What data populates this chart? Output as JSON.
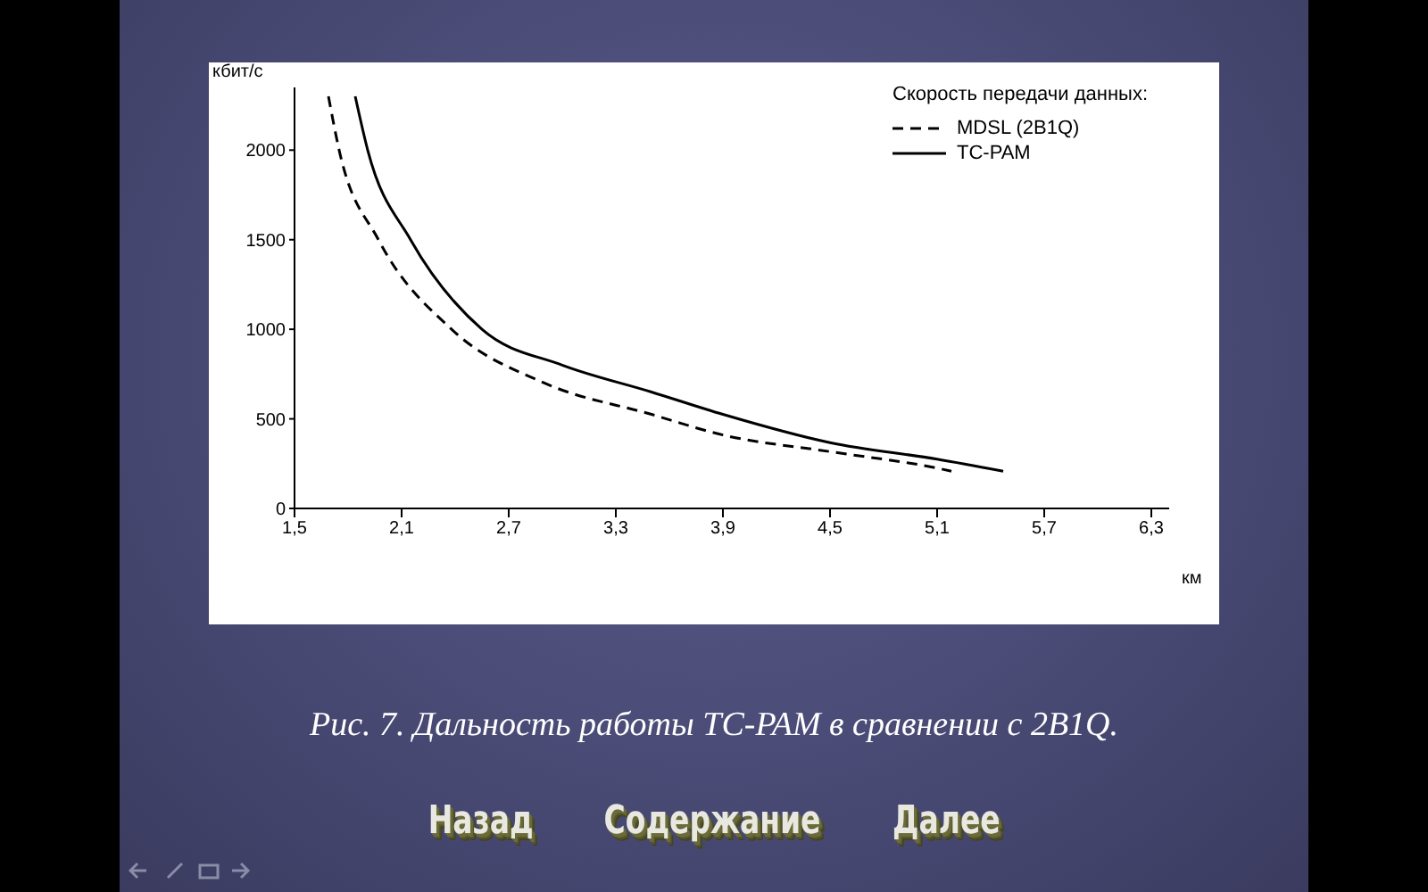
{
  "chart_data": {
    "type": "line",
    "xlabel": "км",
    "ylabel": "кбит/с",
    "legend_title": "Скорость передачи данных:",
    "xlim": [
      1.5,
      6.4
    ],
    "xticks": [
      {
        "value": 1.5,
        "label": "1,5"
      },
      {
        "value": 2.1,
        "label": "2,1"
      },
      {
        "value": 2.7,
        "label": "2,7"
      },
      {
        "value": 3.3,
        "label": "3,3"
      },
      {
        "value": 3.9,
        "label": "3,9"
      },
      {
        "value": 4.5,
        "label": "4,5"
      },
      {
        "value": 5.1,
        "label": "5,1"
      },
      {
        "value": 5.7,
        "label": "5,7"
      },
      {
        "value": 6.3,
        "label": "6,3"
      }
    ],
    "ylim": [
      0,
      2350
    ],
    "yticks": [
      0,
      500,
      1000,
      1500,
      2000
    ],
    "grid": false,
    "legend": "top right",
    "marker": "none",
    "series": [
      {
        "name": "MDSL (2B1Q)",
        "color": "#000000",
        "line_style": "dashed",
        "x": [
          1.69,
          1.75,
          1.97,
          2.38,
          2.9,
          3.5,
          3.9,
          4.5,
          5.1,
          5.18
        ],
        "values": [
          2300,
          2000,
          1500,
          1000,
          700,
          525,
          410,
          317,
          225,
          208
        ]
      },
      {
        "name": "TC-PAM",
        "color": "#000000",
        "line_style": "solid",
        "x": [
          1.84,
          1.91,
          2.15,
          2.55,
          3.0,
          3.5,
          3.9,
          4.5,
          5.1,
          5.47
        ],
        "values": [
          2300,
          2000,
          1500,
          1000,
          800,
          650,
          525,
          367,
          275,
          208
        ]
      }
    ],
    "annotations": [
      "Рис. 7. Дальность работы TC-PAM в сравнении с 2B1Q.",
      "Назад",
      "Содержание",
      "Далее"
    ]
  }
}
